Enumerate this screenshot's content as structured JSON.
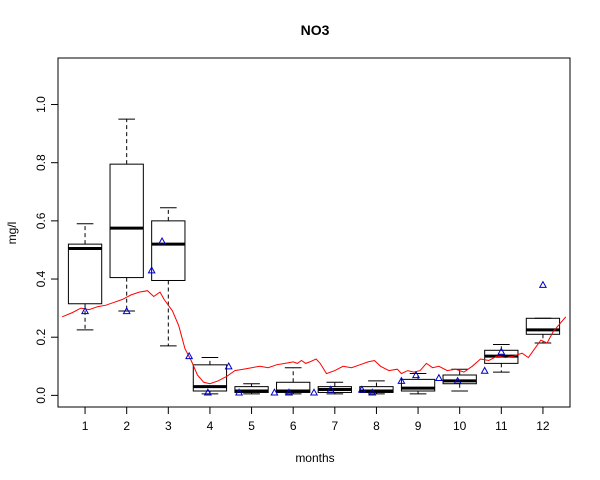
{
  "chart_data": {
    "type": "box",
    "title": "NO3",
    "xlabel": "months",
    "ylabel": "mg/l",
    "ylim": [
      -0.04,
      1.16
    ],
    "xlim": [
      0.35,
      12.65
    ],
    "y_ticks": [
      0.0,
      0.2,
      0.4,
      0.6,
      0.8,
      1.0
    ],
    "y_tick_labels": [
      "0.0",
      "0.2",
      "0.4",
      "0.6",
      "0.8",
      "1.0"
    ],
    "categories": [
      "1",
      "2",
      "3",
      "4",
      "5",
      "6",
      "7",
      "8",
      "9",
      "10",
      "11",
      "12"
    ],
    "grid": false,
    "legend": "none",
    "colors": {
      "box": "#000000",
      "trend": "#ff0000",
      "points": "#0000cc"
    },
    "boxes": [
      {
        "month": 1,
        "min": 0.225,
        "q1": 0.315,
        "median": 0.505,
        "q3": 0.52,
        "max": 0.59
      },
      {
        "month": 2,
        "min": 0.29,
        "q1": 0.405,
        "median": 0.575,
        "q3": 0.795,
        "max": 0.95
      },
      {
        "month": 3,
        "min": 0.17,
        "q1": 0.395,
        "median": 0.52,
        "q3": 0.6,
        "max": 0.645
      },
      {
        "month": 4,
        "min": 0.005,
        "q1": 0.015,
        "median": 0.03,
        "q3": 0.105,
        "max": 0.13
      },
      {
        "month": 5,
        "min": 0.005,
        "q1": 0.01,
        "median": 0.015,
        "q3": 0.03,
        "max": 0.04
      },
      {
        "month": 6,
        "min": 0.005,
        "q1": 0.01,
        "median": 0.015,
        "q3": 0.045,
        "max": 0.095
      },
      {
        "month": 7,
        "min": 0.005,
        "q1": 0.01,
        "median": 0.02,
        "q3": 0.03,
        "max": 0.045
      },
      {
        "month": 8,
        "min": 0.005,
        "q1": 0.01,
        "median": 0.015,
        "q3": 0.03,
        "max": 0.05
      },
      {
        "month": 9,
        "min": 0.005,
        "q1": 0.015,
        "median": 0.025,
        "q3": 0.055,
        "max": 0.075
      },
      {
        "month": 10,
        "min": 0.015,
        "q1": 0.04,
        "median": 0.05,
        "q3": 0.07,
        "max": 0.09
      },
      {
        "month": 11,
        "min": 0.08,
        "q1": 0.11,
        "median": 0.135,
        "q3": 0.155,
        "max": 0.175
      },
      {
        "month": 12,
        "min": 0.18,
        "q1": 0.21,
        "median": 0.225,
        "q3": 0.265,
        "max": 0.265
      }
    ],
    "points": [
      {
        "x": 1.0,
        "y": 0.29
      },
      {
        "x": 2.0,
        "y": 0.29
      },
      {
        "x": 2.6,
        "y": 0.43
      },
      {
        "x": 2.85,
        "y": 0.53
      },
      {
        "x": 3.5,
        "y": 0.135
      },
      {
        "x": 3.95,
        "y": 0.01
      },
      {
        "x": 4.45,
        "y": 0.1
      },
      {
        "x": 4.7,
        "y": 0.01
      },
      {
        "x": 5.55,
        "y": 0.01
      },
      {
        "x": 5.9,
        "y": 0.01
      },
      {
        "x": 6.5,
        "y": 0.01
      },
      {
        "x": 6.9,
        "y": 0.02
      },
      {
        "x": 7.65,
        "y": 0.02
      },
      {
        "x": 7.9,
        "y": 0.01
      },
      {
        "x": 8.6,
        "y": 0.05
      },
      {
        "x": 8.95,
        "y": 0.07
      },
      {
        "x": 9.5,
        "y": 0.06
      },
      {
        "x": 9.95,
        "y": 0.05
      },
      {
        "x": 10.6,
        "y": 0.085
      },
      {
        "x": 11.0,
        "y": 0.15
      },
      {
        "x": 12.0,
        "y": 0.38
      }
    ],
    "trend": {
      "x": [
        0.45,
        0.7,
        0.9,
        1.1,
        1.3,
        1.5,
        1.7,
        1.9,
        2.1,
        2.3,
        2.5,
        2.65,
        2.8,
        2.9,
        3.0,
        3.1,
        3.25,
        3.4,
        3.55,
        3.7,
        3.85,
        4.0,
        4.2,
        4.4,
        4.6,
        4.8,
        5.0,
        5.2,
        5.4,
        5.6,
        5.8,
        6.0,
        6.1,
        6.2,
        6.3,
        6.4,
        6.55,
        6.65,
        6.8,
        7.0,
        7.2,
        7.4,
        7.6,
        7.8,
        7.95,
        8.1,
        8.3,
        8.5,
        8.6,
        8.75,
        8.9,
        9.05,
        9.2,
        9.35,
        9.5,
        9.7,
        9.9,
        10.1,
        10.3,
        10.5,
        10.7,
        10.9,
        11.1,
        11.3,
        11.5,
        11.65,
        11.8,
        11.95,
        12.1,
        12.25,
        12.4,
        12.55
      ],
      "y": [
        0.27,
        0.285,
        0.3,
        0.295,
        0.305,
        0.31,
        0.32,
        0.33,
        0.345,
        0.355,
        0.36,
        0.34,
        0.355,
        0.33,
        0.31,
        0.29,
        0.24,
        0.16,
        0.12,
        0.07,
        0.045,
        0.04,
        0.05,
        0.065,
        0.085,
        0.09,
        0.095,
        0.1,
        0.095,
        0.105,
        0.11,
        0.115,
        0.11,
        0.12,
        0.11,
        0.115,
        0.125,
        0.11,
        0.075,
        0.085,
        0.1,
        0.095,
        0.105,
        0.115,
        0.12,
        0.1,
        0.085,
        0.09,
        0.075,
        0.085,
        0.08,
        0.085,
        0.11,
        0.095,
        0.1,
        0.085,
        0.09,
        0.08,
        0.1,
        0.125,
        0.12,
        0.135,
        0.13,
        0.135,
        0.145,
        0.13,
        0.16,
        0.19,
        0.18,
        0.22,
        0.245,
        0.27
      ]
    }
  }
}
